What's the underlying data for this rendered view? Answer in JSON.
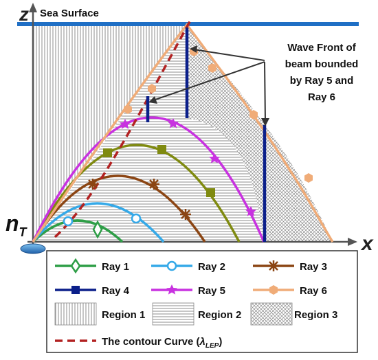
{
  "labels": {
    "z_axis": "z",
    "x_axis": "x",
    "sea_surface": "Sea Surface",
    "source_main": "n",
    "source_sub": "T",
    "annotation_lines": [
      "Wave Front of",
      "beam bounded",
      "by Ray 5 and",
      "Ray 6"
    ]
  },
  "legend": {
    "items": [
      {
        "label": "Ray 1",
        "color": "#2E9E47",
        "marker": "diamond"
      },
      {
        "label": "Ray 2",
        "color": "#35A9E8",
        "marker": "circle"
      },
      {
        "label": "Ray 3",
        "color": "#8B4513",
        "marker": "asterisk"
      },
      {
        "label": "Ray 4",
        "color": "#0B1F8A",
        "marker": "square"
      },
      {
        "label": "Ray 5",
        "color": "#C832E0",
        "marker": "star"
      },
      {
        "label": "Ray 6",
        "color": "#F0AC78",
        "marker": "hexagon"
      }
    ],
    "regions": [
      {
        "label": "Region 1",
        "pattern": "vertical-lines"
      },
      {
        "label": "Region 2",
        "pattern": "horizontal-lines"
      },
      {
        "label": "Region 3",
        "pattern": "crosshatch"
      }
    ],
    "contour_label": "The contour Curve (",
    "contour_symbol": "λ",
    "contour_subscript": "LEP",
    "contour_close": ")",
    "contour_color": "#B22222"
  },
  "colors": {
    "sea_surface": "#1F6FC5",
    "axis": "#555555",
    "wavefront": "#0B1F8A",
    "ray4_olive": "#7F8A10"
  }
}
